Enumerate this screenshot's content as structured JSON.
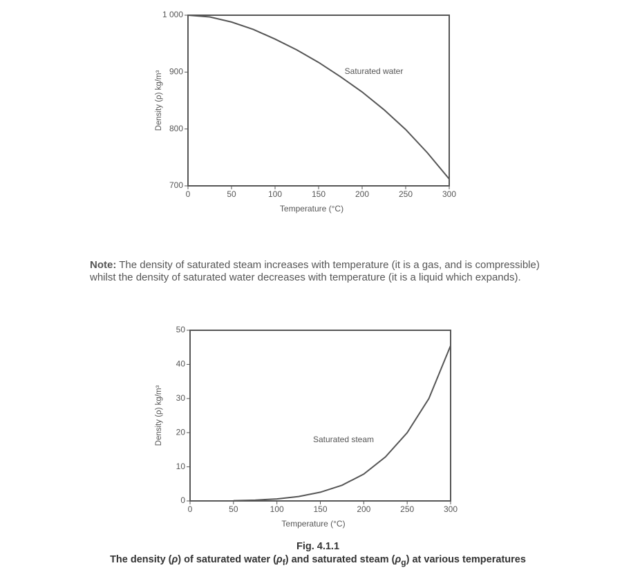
{
  "chart_data": [
    {
      "type": "line",
      "xlabel": "Temperature (°C)",
      "ylabel": "Density (ρ) kg/m³",
      "x": [
        0,
        25,
        50,
        75,
        100,
        125,
        150,
        175,
        200,
        225,
        250,
        275,
        300
      ],
      "series": [
        {
          "name": "Saturated water",
          "color": "#555555",
          "values": [
            1000,
            997,
            988,
            975,
            958,
            939,
            917,
            892,
            865,
            834,
            799,
            758,
            712
          ]
        }
      ],
      "xlim": [
        0,
        300
      ],
      "xticks": [
        0,
        50,
        100,
        150,
        200,
        250,
        300
      ],
      "ylim": [
        700,
        1000
      ],
      "yticks": [
        700,
        800,
        900,
        {
          "value": 1000,
          "label": "1 000"
        }
      ]
    },
    {
      "type": "line",
      "xlabel": "Temperature (°C)",
      "ylabel": "Density (ρ) kg/m³",
      "x": [
        50,
        75,
        100,
        125,
        150,
        175,
        200,
        225,
        250,
        275,
        300
      ],
      "series": [
        {
          "name": "Saturated steam",
          "color": "#555555",
          "values": [
            0.08,
            0.24,
            0.59,
            1.3,
            2.55,
            4.6,
            7.86,
            12.9,
            19.99,
            30.0,
            45.5
          ]
        }
      ],
      "xlim": [
        0,
        300
      ],
      "xticks": [
        0,
        50,
        100,
        150,
        200,
        250,
        300
      ],
      "ylim": [
        0,
        50
      ],
      "yticks": [
        0,
        10,
        20,
        30,
        40,
        50
      ]
    }
  ],
  "note": {
    "label": "Note:",
    "text": "The density of saturated steam increases with temperature (it is a gas, and is compressible) whilst the density of saturated water decreases with temperature (it is a liquid which expands)."
  },
  "caption": {
    "figure": "Fig. 4.1.1",
    "parts": [
      "The density (",
      "ρ",
      ") of saturated water (",
      "ρ",
      "f",
      ") and saturated steam (",
      "ρ",
      "g",
      ") at various temperatures"
    ]
  }
}
